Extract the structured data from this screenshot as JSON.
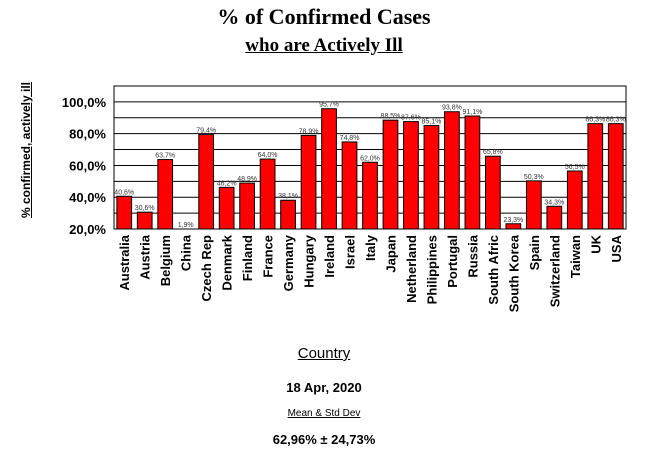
{
  "chart_data": {
    "type": "bar",
    "title": "% of Confirmed Cases",
    "subtitle": "who are Actively Ill",
    "ylabel": "% confirmed, actively ill",
    "xlabel": "Country",
    "categories": [
      "Australia",
      "Austria",
      "Belgium",
      "China",
      "Czech Rep",
      "Denmark",
      "Finland",
      "France",
      "Germany",
      "Hungary",
      "Ireland",
      "Israel",
      "Italy",
      "Japan",
      "Netherland",
      "Philippines",
      "Portugal",
      "Russia",
      "South Afric",
      "South Korea",
      "Spain",
      "Switzerland",
      "Taiwan",
      "UK",
      "USA"
    ],
    "values": [
      40.6,
      30.6,
      63.7,
      1.9,
      79.4,
      46.2,
      48.9,
      64.0,
      38.1,
      78.9,
      95.7,
      74.8,
      62.0,
      88.5,
      87.6,
      85.1,
      93.8,
      91.1,
      65.8,
      23.3,
      50.3,
      34.3,
      56.5,
      86.3,
      86.3
    ],
    "value_labels": [
      "40,6%",
      "30,6%",
      "63,7%",
      "1,9%",
      "79,4%",
      "46,2%",
      "48,9%",
      "64,0%",
      "38,1%",
      "78,9%",
      "95,7%",
      "74,8%",
      "62,0%",
      "88,5%",
      "87,6%",
      "85,1%",
      "93,8%",
      "91,1%",
      "65,8%",
      "23,3%",
      "50,3%",
      "34,3%",
      "56,5%",
      "86,3%",
      "86,3%"
    ],
    "yticks": [
      "20,0%",
      "40,0%",
      "60,0%",
      "80,0%",
      "100,0%"
    ],
    "ylim": [
      20,
      110
    ],
    "grid": true,
    "bar_color": "#ff0000"
  },
  "footer": {
    "date": "18 Apr, 2020",
    "stat_label": "Mean & Std Dev",
    "stat_value": "62,96% ± 24,73%"
  }
}
